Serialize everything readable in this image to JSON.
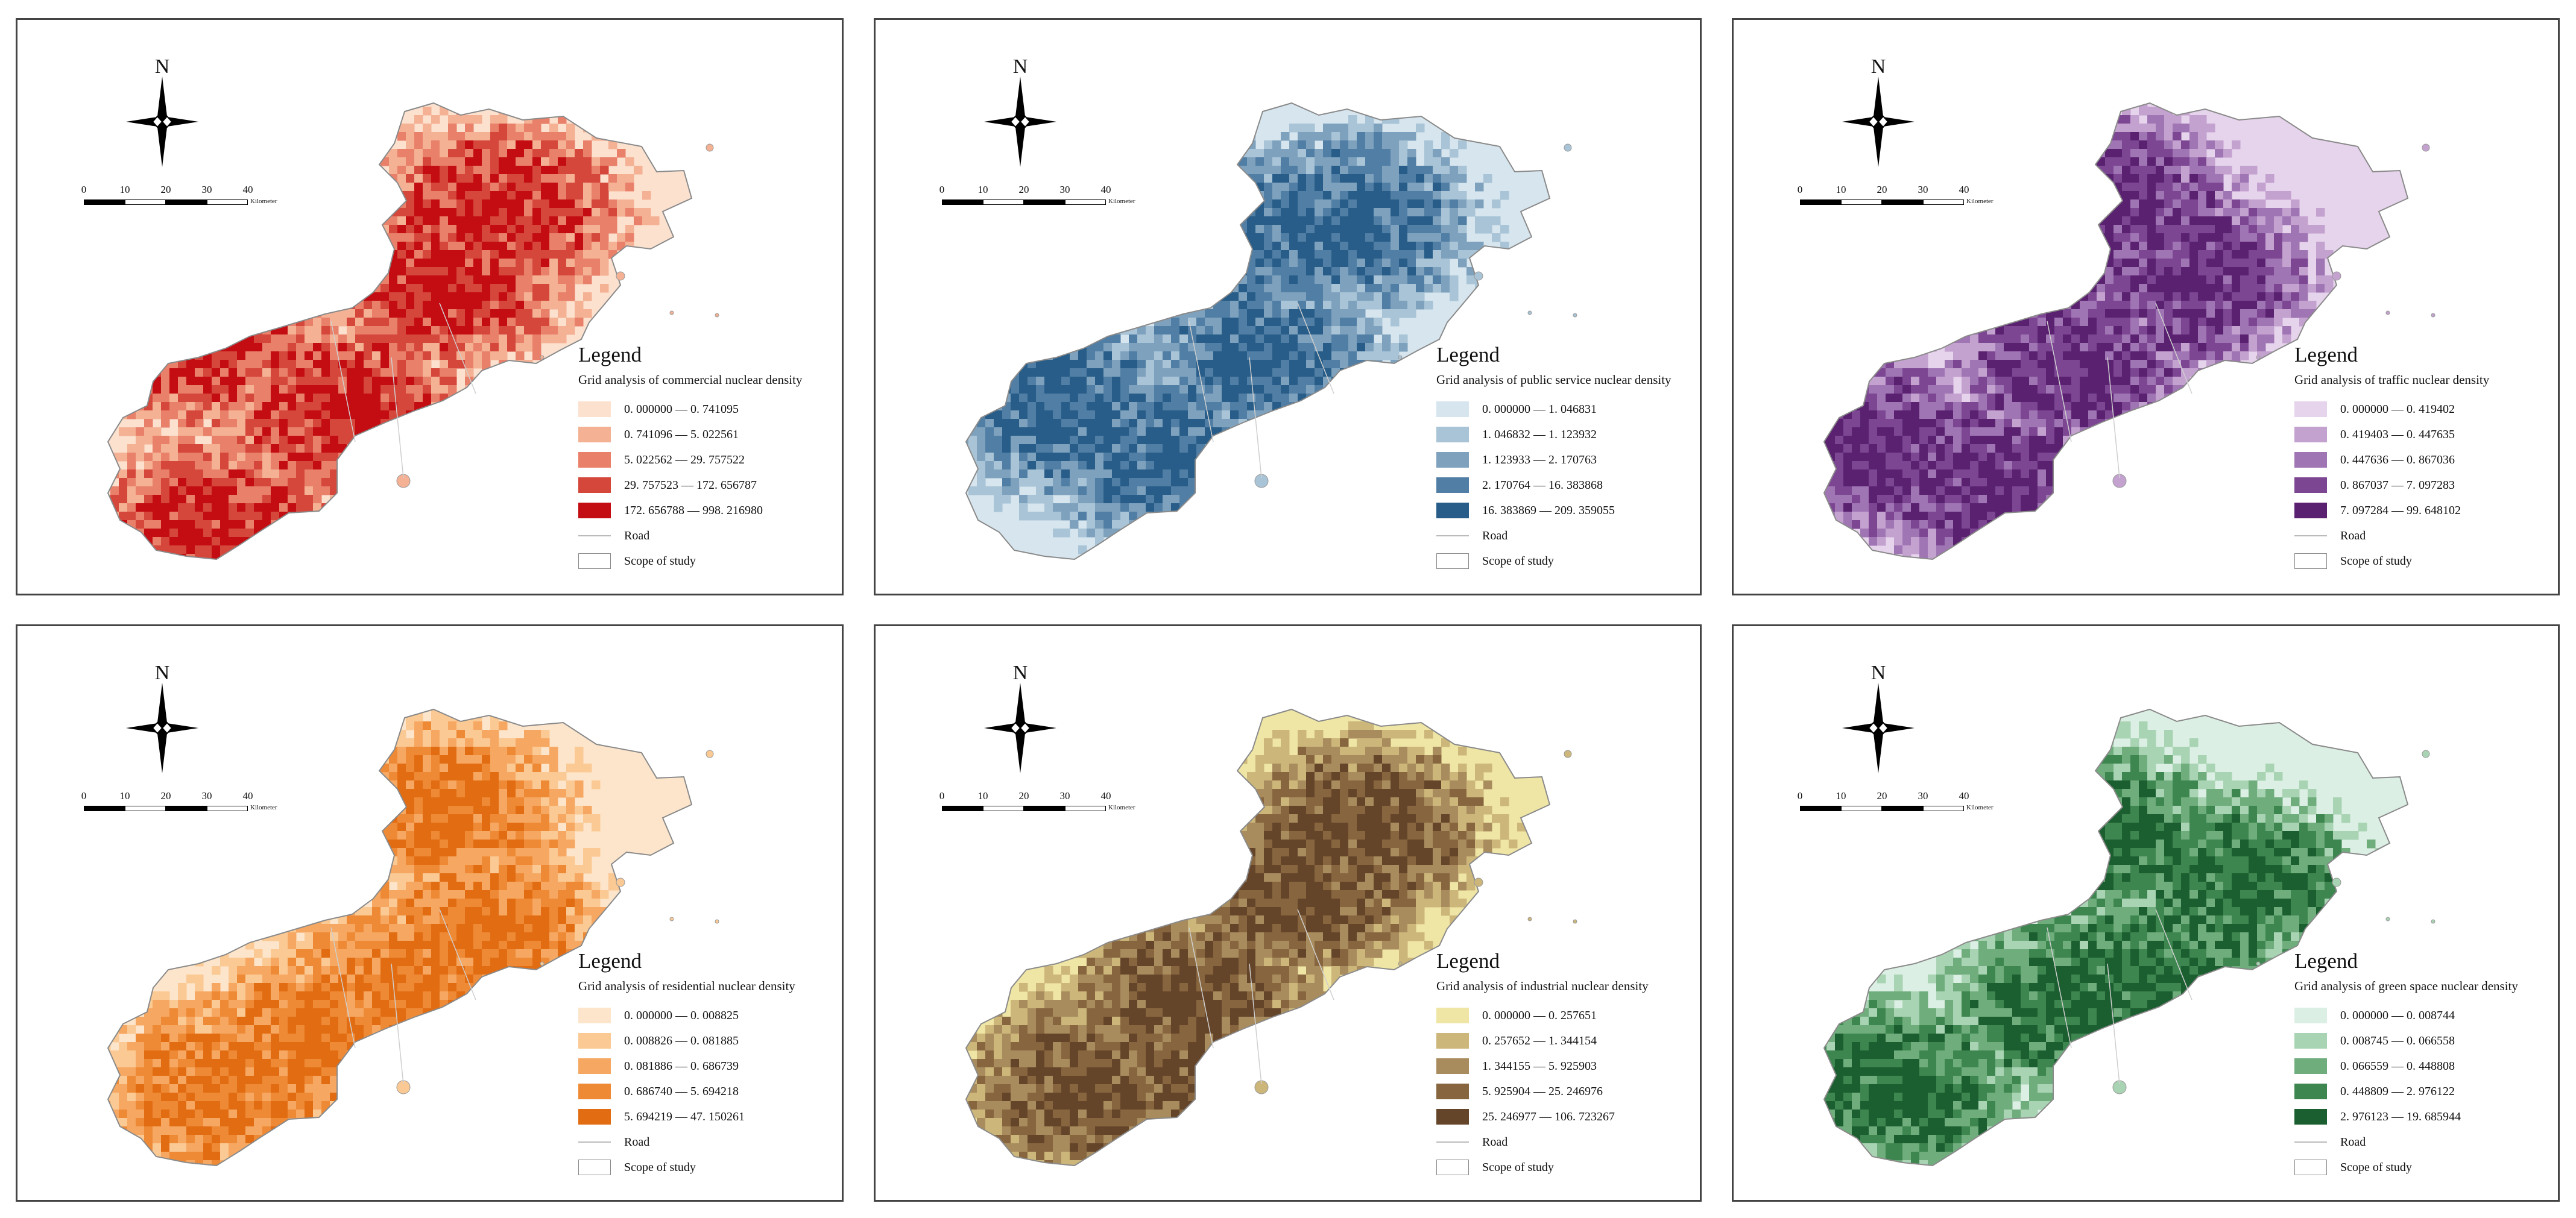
{
  "panels": [
    {
      "id": "commercial",
      "north_label": "N",
      "scale": {
        "ticks": [
          "0",
          "10",
          "20",
          "30",
          "40"
        ],
        "unit": "Kilometer"
      },
      "legend": {
        "title": "Legend",
        "subtitle": "Grid analysis of commercial nuclear density",
        "classes": [
          {
            "label": "0. 000000 — 0. 741095",
            "color": "#fce1cf"
          },
          {
            "label": "0. 741096 — 5. 022561",
            "color": "#f4b194"
          },
          {
            "label": "5. 022562 — 29. 757522",
            "color": "#e9806a"
          },
          {
            "label": "29. 757523 — 172. 656787",
            "color": "#d5463b"
          },
          {
            "label": "172. 656788 — 998. 216980",
            "color": "#c30d12"
          }
        ],
        "road_label": "Road",
        "scope_label": "Scope of study"
      }
    },
    {
      "id": "public-service",
      "north_label": "N",
      "scale": {
        "ticks": [
          "0",
          "10",
          "20",
          "30",
          "40"
        ],
        "unit": "Kilometer"
      },
      "legend": {
        "title": "Legend",
        "subtitle": "Grid analysis of public service nuclear density",
        "classes": [
          {
            "label": "0. 000000 — 1. 046831",
            "color": "#d6e5ee"
          },
          {
            "label": "1. 046832 — 1. 123932",
            "color": "#a8c4d6"
          },
          {
            "label": "1. 123933 — 2. 170763",
            "color": "#7ea2be"
          },
          {
            "label": "2. 170764 — 16. 383868",
            "color": "#517ea4"
          },
          {
            "label": "16. 383869 — 209. 359055",
            "color": "#275d88"
          }
        ],
        "road_label": "Road",
        "scope_label": "Scope of study"
      }
    },
    {
      "id": "traffic",
      "north_label": "N",
      "scale": {
        "ticks": [
          "0",
          "10",
          "20",
          "30",
          "40"
        ],
        "unit": "Kilometer"
      },
      "legend": {
        "title": "Legend",
        "subtitle": "Grid analysis of traffic nuclear density",
        "classes": [
          {
            "label": "0. 000000 — 0. 419402",
            "color": "#e6d3ec"
          },
          {
            "label": "0. 419403 — 0. 447635",
            "color": "#c4a2d0"
          },
          {
            "label": "0. 447636 — 0. 867036",
            "color": "#a075b4"
          },
          {
            "label": "0. 867037 — 7. 097283",
            "color": "#7c4693"
          },
          {
            "label": "7. 097284 — 99. 648102",
            "color": "#5a2170"
          }
        ],
        "road_label": "Road",
        "scope_label": "Scope of study"
      }
    },
    {
      "id": "residential",
      "north_label": "N",
      "scale": {
        "ticks": [
          "0",
          "10",
          "20",
          "30",
          "40"
        ],
        "unit": "Kilometer"
      },
      "legend": {
        "title": "Legend",
        "subtitle": "Grid analysis of residential nuclear density",
        "classes": [
          {
            "label": "0. 000000 — 0. 008825",
            "color": "#fde5cb"
          },
          {
            "label": "0. 008826 — 0. 081885",
            "color": "#fbc993"
          },
          {
            "label": "0. 081886 — 0. 686739",
            "color": "#f6a862"
          },
          {
            "label": "0. 686740 — 5. 694218",
            "color": "#ee8a36"
          },
          {
            "label": "5. 694219 — 47. 150261",
            "color": "#e26c12"
          }
        ],
        "road_label": "Road",
        "scope_label": "Scope of study"
      }
    },
    {
      "id": "industrial",
      "north_label": "N",
      "scale": {
        "ticks": [
          "0",
          "10",
          "20",
          "30",
          "40"
        ],
        "unit": "Kilometer"
      },
      "legend": {
        "title": "Legend",
        "subtitle": "Grid analysis of industrial nuclear density",
        "classes": [
          {
            "label": "0. 000000 — 0. 257651",
            "color": "#efe5a5"
          },
          {
            "label": "0. 257652 — 1. 344154",
            "color": "#ccb67a"
          },
          {
            "label": "1. 344155 — 5. 925903",
            "color": "#a98c5d"
          },
          {
            "label": "5. 925904 — 25. 246976",
            "color": "#87663f"
          },
          {
            "label": "25. 246977 — 106. 723267",
            "color": "#65452a"
          }
        ],
        "road_label": "Road",
        "scope_label": "Scope of study"
      }
    },
    {
      "id": "green-space",
      "north_label": "N",
      "scale": {
        "ticks": [
          "0",
          "10",
          "20",
          "30",
          "40"
        ],
        "unit": "Kilometer"
      },
      "legend": {
        "title": "Legend",
        "subtitle": "Grid analysis of green space nuclear density",
        "classes": [
          {
            "label": "0. 000000 — 0. 008744",
            "color": "#dcefe4"
          },
          {
            "label": "0. 008745 — 0. 066558",
            "color": "#a9d4b4"
          },
          {
            "label": "0. 066559 — 0. 448808",
            "color": "#6fad7c"
          },
          {
            "label": "0. 448809 — 2. 976122",
            "color": "#3e8650"
          },
          {
            "label": "2. 976123 — 19. 685944",
            "color": "#1b5e2f"
          }
        ],
        "road_label": "Road",
        "scope_label": "Scope of study"
      }
    }
  ]
}
